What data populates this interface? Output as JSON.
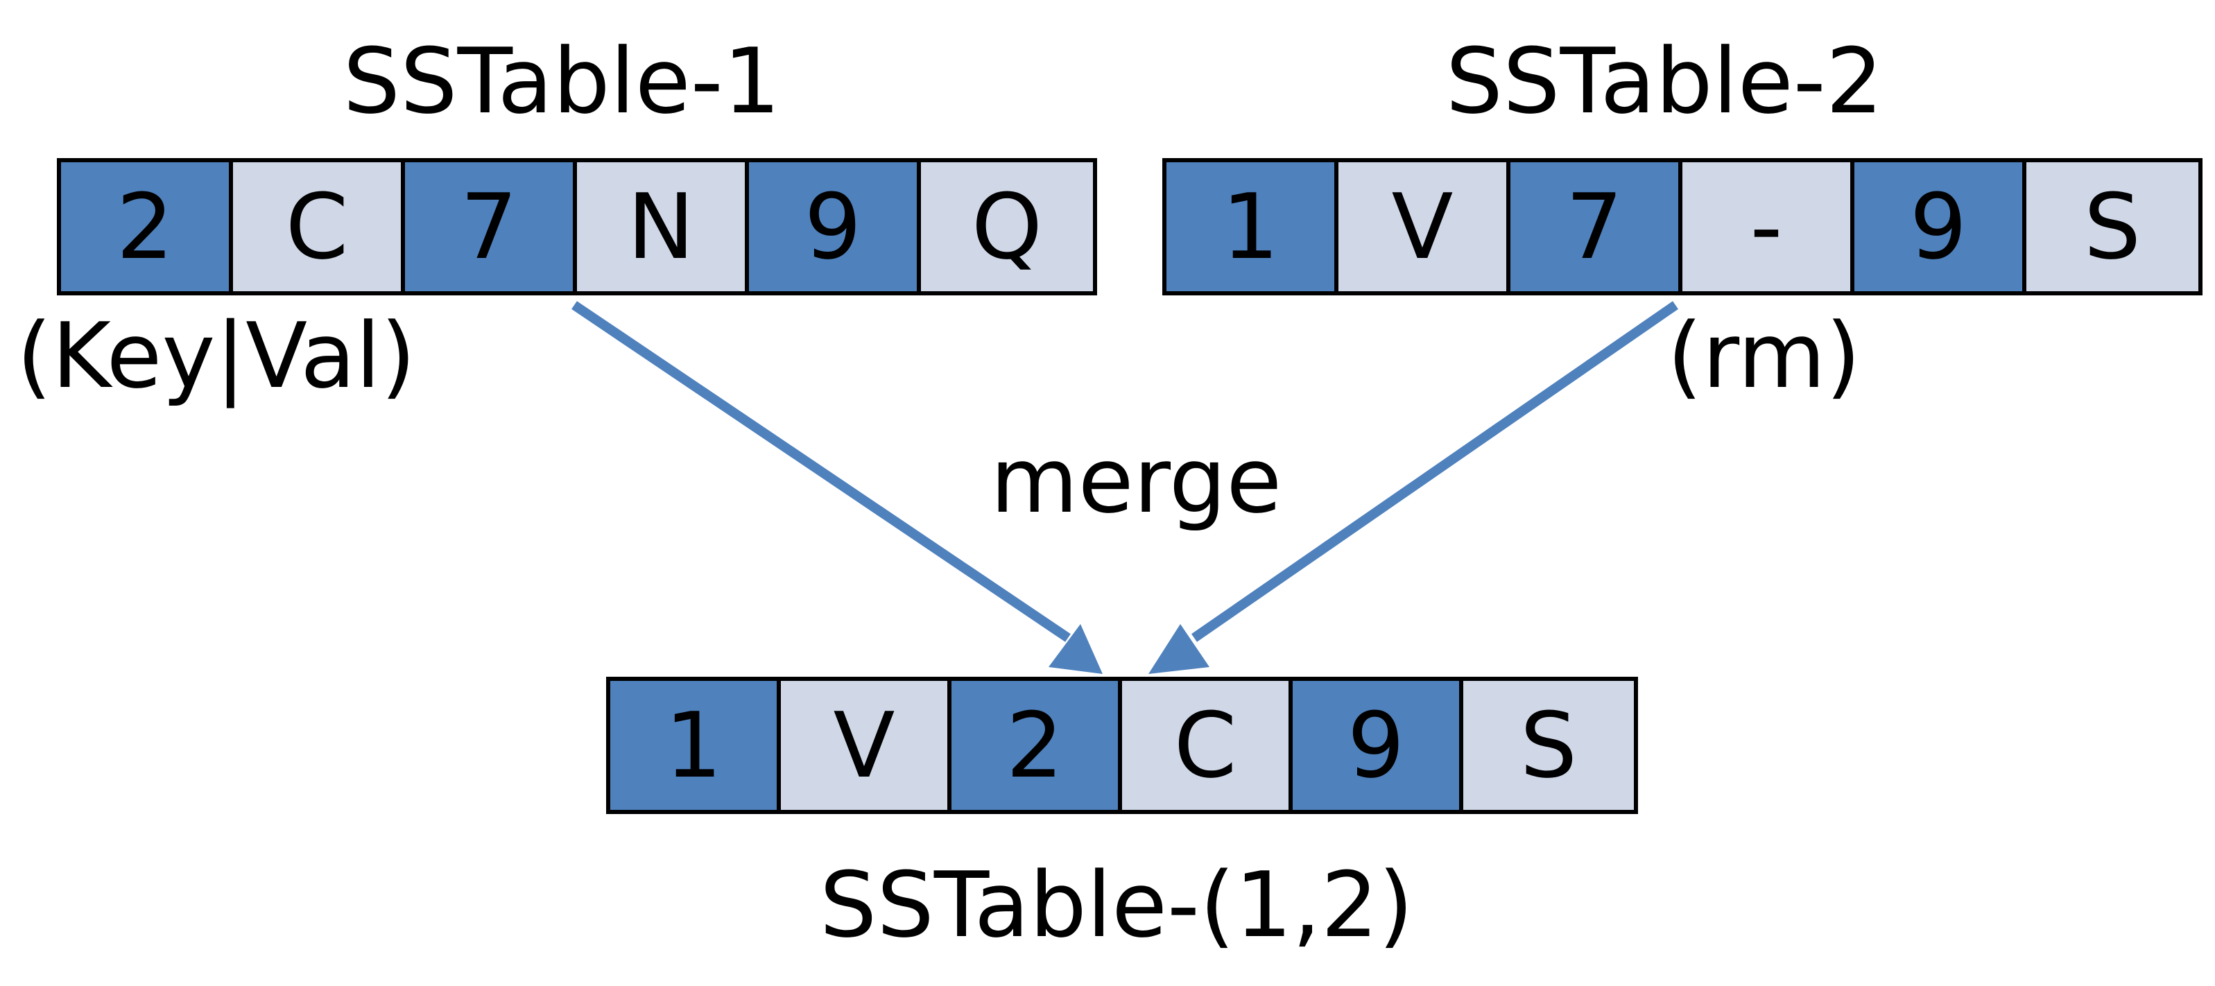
{
  "colors": {
    "key_cell": "#4f81bd",
    "value_cell": "#d0d8e8",
    "arrow": "#4f81bd",
    "border": "#000000"
  },
  "table1": {
    "title": "SSTable-1",
    "cells": [
      "2",
      "C",
      "7",
      "N",
      "9",
      "Q"
    ],
    "note": "(Key|Val)"
  },
  "table2": {
    "title": "SSTable-2",
    "cells": [
      "1",
      "V",
      "7",
      "-",
      "9",
      "S"
    ],
    "note": "(rm)"
  },
  "merge_label": "merge",
  "merged": {
    "title": "SSTable-(1,2)",
    "cells": [
      "1",
      "V",
      "2",
      "C",
      "9",
      "S"
    ]
  }
}
